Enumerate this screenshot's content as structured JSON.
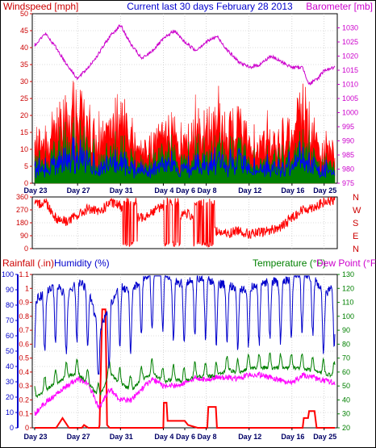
{
  "header": {
    "windspeed_label": "Windspeed [mph]",
    "title": "Current last 30 days February 28 2013",
    "barometer_label": "Barometer [mb]"
  },
  "lower_header": {
    "rainfall_label": "Rainfall (.in)",
    "humidity_label": "Humidity (%)",
    "temperature_label": "Temperature (°F)",
    "dewpoint_label": "Dew Point (°F)"
  },
  "colors": {
    "background": "#ffffff",
    "frame": "#000000",
    "wind_max": "#ff0000",
    "wind_avg": "#008000",
    "wind_line": "#0000ff",
    "barometer": "#cc00cc",
    "direction": "#ff0000",
    "rain": "#ff0000",
    "humidity": "#0000cc",
    "temperature": "#008000",
    "dewpoint": "#ff00ff",
    "title": "#0000cc"
  },
  "chart_data": [
    {
      "type": "area",
      "name": "wind-barometer",
      "x_tick_labels": [
        "Day 23",
        "Day 27",
        "Day 31",
        "Day 4",
        "Day 6",
        "Day 8",
        "Day 12",
        "Day 16",
        "Day 25"
      ],
      "x_ticks_day_index": [
        0,
        4,
        8,
        12,
        14,
        16,
        20,
        24,
        27
      ],
      "ylim_left": [
        0,
        50
      ],
      "yticks_left": [
        0,
        5,
        10,
        15,
        20,
        25,
        30,
        35,
        40,
        45,
        50
      ],
      "ylim_right": [
        975,
        1035
      ],
      "yticks_right": [
        975,
        980,
        985,
        990,
        995,
        1000,
        1005,
        1010,
        1015,
        1020,
        1025,
        1030
      ],
      "barometer_profile": [
        [
          0,
          1024
        ],
        [
          1,
          1028
        ],
        [
          2,
          1023
        ],
        [
          3,
          1017
        ],
        [
          4,
          1012
        ],
        [
          5,
          1016
        ],
        [
          6,
          1021
        ],
        [
          7,
          1027
        ],
        [
          8,
          1031
        ],
        [
          9,
          1024
        ],
        [
          10,
          1019
        ],
        [
          11,
          1022
        ],
        [
          12,
          1026
        ],
        [
          13,
          1029
        ],
        [
          14,
          1025
        ],
        [
          15,
          1022
        ],
        [
          16,
          1025
        ],
        [
          17,
          1027
        ],
        [
          18,
          1022
        ],
        [
          19,
          1018
        ],
        [
          20,
          1016
        ],
        [
          21,
          1017
        ],
        [
          22,
          1020
        ],
        [
          23,
          1018
        ],
        [
          24,
          1016
        ],
        [
          25,
          1016
        ],
        [
          25.6,
          1010
        ],
        [
          26.4,
          1012
        ],
        [
          27,
          1015
        ],
        [
          28,
          1016
        ]
      ],
      "wind_max_profile": [
        [
          0,
          12
        ],
        [
          1,
          14
        ],
        [
          2,
          17
        ],
        [
          3,
          22
        ],
        [
          4,
          23
        ],
        [
          5,
          18
        ],
        [
          6,
          12
        ],
        [
          7,
          17
        ],
        [
          8,
          22
        ],
        [
          9,
          15
        ],
        [
          10,
          10
        ],
        [
          11,
          12
        ],
        [
          12,
          14
        ],
        [
          13,
          16
        ],
        [
          14,
          12
        ],
        [
          15,
          15
        ],
        [
          16,
          20
        ],
        [
          17,
          18
        ],
        [
          18,
          16
        ],
        [
          19,
          18
        ],
        [
          20,
          14
        ],
        [
          21,
          12
        ],
        [
          22,
          12
        ],
        [
          23,
          14
        ],
        [
          24,
          16
        ],
        [
          25,
          24
        ],
        [
          26,
          15
        ],
        [
          27,
          10
        ],
        [
          28,
          10
        ]
      ]
    },
    {
      "type": "scatter",
      "name": "wind-direction",
      "ylim": [
        0,
        360
      ],
      "yticks": [
        0,
        90,
        180,
        270,
        360
      ],
      "compass_labels": [
        "N",
        "W",
        "S",
        "E",
        "N"
      ],
      "direction_profile": [
        [
          0,
          300
        ],
        [
          1,
          330
        ],
        [
          2,
          210
        ],
        [
          3,
          190
        ],
        [
          4,
          230
        ],
        [
          5,
          280
        ],
        [
          6,
          250
        ],
        [
          7,
          320
        ],
        [
          8,
          300
        ],
        [
          9,
          200
        ],
        [
          10,
          220
        ],
        [
          11,
          260
        ],
        [
          12,
          300
        ],
        [
          13,
          200
        ],
        [
          14,
          250
        ],
        [
          15,
          220
        ],
        [
          16,
          200
        ],
        [
          17,
          120
        ],
        [
          18,
          100
        ],
        [
          19,
          130
        ],
        [
          20,
          100
        ],
        [
          21,
          110
        ],
        [
          22,
          130
        ],
        [
          23,
          150
        ],
        [
          24,
          220
        ],
        [
          25,
          270
        ],
        [
          26,
          290
        ],
        [
          27,
          320
        ],
        [
          28,
          340
        ]
      ]
    },
    {
      "type": "line",
      "name": "temperature-humidity-rain",
      "ylim_humidity": [
        0,
        100
      ],
      "yticks_humidity": [
        0,
        10,
        20,
        30,
        40,
        50,
        60,
        70,
        80,
        90,
        100
      ],
      "ylim_rain": [
        0,
        1.1
      ],
      "yticks_rain": [
        0,
        0.1,
        0.2,
        0.3,
        0.4,
        0.5,
        0.6,
        0.7,
        0.8,
        0.9,
        1,
        1.1
      ],
      "ylim_temperature": [
        20,
        130
      ],
      "yticks_temperature": [
        20,
        30,
        40,
        50,
        60,
        70,
        80,
        90,
        100,
        110,
        120,
        130
      ],
      "humidity_profile": [
        [
          0,
          75
        ],
        [
          1,
          80
        ],
        [
          2,
          85
        ],
        [
          3,
          78
        ],
        [
          4,
          88
        ],
        [
          5,
          82
        ],
        [
          6,
          55
        ],
        [
          7,
          72
        ],
        [
          8,
          85
        ],
        [
          9,
          80
        ],
        [
          10,
          90
        ],
        [
          11,
          93
        ],
        [
          12,
          94
        ],
        [
          13,
          88
        ],
        [
          14,
          85
        ],
        [
          15,
          90
        ],
        [
          16,
          89
        ],
        [
          17,
          86
        ],
        [
          18,
          85
        ],
        [
          19,
          82
        ],
        [
          20,
          83
        ],
        [
          21,
          85
        ],
        [
          22,
          88
        ],
        [
          23,
          86
        ],
        [
          24,
          90
        ],
        [
          25,
          92
        ],
        [
          26,
          90
        ],
        [
          27,
          78
        ],
        [
          28,
          85
        ]
      ],
      "temperature_profile": [
        [
          0,
          45
        ],
        [
          1,
          50
        ],
        [
          2,
          55
        ],
        [
          3,
          60
        ],
        [
          4,
          62
        ],
        [
          5,
          55
        ],
        [
          6,
          45
        ],
        [
          7,
          62
        ],
        [
          8,
          55
        ],
        [
          9,
          50
        ],
        [
          10,
          58
        ],
        [
          11,
          62
        ],
        [
          12,
          56
        ],
        [
          13,
          58
        ],
        [
          14,
          56
        ],
        [
          15,
          60
        ],
        [
          16,
          60
        ],
        [
          17,
          60
        ],
        [
          18,
          65
        ],
        [
          19,
          62
        ],
        [
          20,
          66
        ],
        [
          21,
          66
        ],
        [
          22,
          66
        ],
        [
          23,
          66
        ],
        [
          24,
          66
        ],
        [
          25,
          66
        ],
        [
          26,
          64
        ],
        [
          27,
          62
        ],
        [
          28,
          60
        ]
      ],
      "dewpoint_profile": [
        [
          0,
          30
        ],
        [
          1,
          38
        ],
        [
          2,
          44
        ],
        [
          3,
          50
        ],
        [
          4,
          55
        ],
        [
          5,
          52
        ],
        [
          6,
          34
        ],
        [
          7,
          48
        ],
        [
          8,
          40
        ],
        [
          9,
          40
        ],
        [
          10,
          48
        ],
        [
          11,
          55
        ],
        [
          12,
          50
        ],
        [
          13,
          50
        ],
        [
          14,
          52
        ],
        [
          15,
          56
        ],
        [
          16,
          55
        ],
        [
          17,
          56
        ],
        [
          18,
          56
        ],
        [
          19,
          55
        ],
        [
          20,
          58
        ],
        [
          21,
          58
        ],
        [
          22,
          56
        ],
        [
          23,
          54
        ],
        [
          24,
          52
        ],
        [
          25,
          58
        ],
        [
          26,
          56
        ],
        [
          27,
          54
        ],
        [
          28,
          52
        ]
      ],
      "rain_profile": [
        [
          0,
          0
        ],
        [
          1,
          0
        ],
        [
          2,
          0
        ],
        [
          2.6,
          0.07
        ],
        [
          3.2,
          0
        ],
        [
          4.4,
          0
        ],
        [
          4.6,
          0.02
        ],
        [
          5.0,
          0
        ],
        [
          6.0,
          0
        ],
        [
          6.05,
          0.02
        ],
        [
          6.3,
          0.85
        ],
        [
          6.6,
          0.85
        ],
        [
          6.75,
          0.02
        ],
        [
          7.0,
          0
        ],
        [
          12.0,
          0
        ],
        [
          12.05,
          0.18
        ],
        [
          12.3,
          0.18
        ],
        [
          12.4,
          0.05
        ],
        [
          14.0,
          0.05
        ],
        [
          14.3,
          0.02
        ],
        [
          15.2,
          0
        ],
        [
          16.1,
          0
        ],
        [
          16.2,
          0.15
        ],
        [
          16.9,
          0.15
        ],
        [
          17.0,
          0
        ],
        [
          25.0,
          0
        ],
        [
          25.1,
          0.07
        ],
        [
          25.5,
          0.07
        ],
        [
          25.6,
          0.12
        ],
        [
          26.1,
          0.12
        ],
        [
          26.3,
          0
        ],
        [
          28,
          0
        ]
      ]
    }
  ]
}
